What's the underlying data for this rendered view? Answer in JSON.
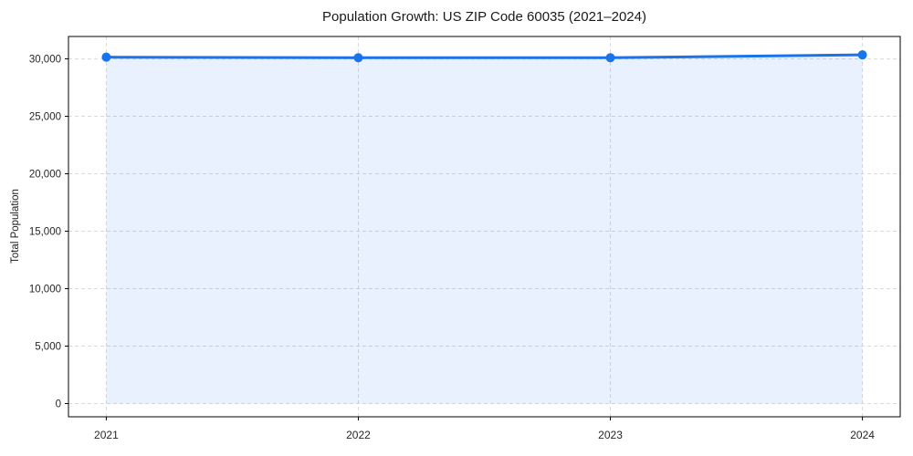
{
  "chart_data": {
    "type": "area",
    "title": "Population Growth: US ZIP Code 60035 (2021–2024)",
    "xlabel": "",
    "ylabel": "Total Population",
    "x": [
      2021,
      2022,
      2023,
      2024
    ],
    "values": [
      30150,
      30100,
      30100,
      30350
    ],
    "series_name": "Total Population",
    "x_tick_labels": [
      "2021",
      "2022",
      "2023",
      "2024"
    ],
    "y_ticks": [
      0,
      5000,
      10000,
      15000,
      20000,
      25000,
      30000
    ],
    "y_tick_labels": [
      "0",
      "5,000",
      "10,000",
      "15,000",
      "20,000",
      "25,000",
      "30,000"
    ],
    "xlim": [
      2020.85,
      2024.15
    ],
    "ylim": [
      -1150,
      31950
    ],
    "area_baseline": 0,
    "grid": true,
    "legend": "none",
    "colors": {
      "line": "#1a73e8",
      "marker": "#1a73e8",
      "fill": "#1a73e8",
      "fill_opacity": 0.1,
      "grid": "#d9d9d9",
      "spine": "#000000",
      "tick_text": "#262626"
    }
  }
}
